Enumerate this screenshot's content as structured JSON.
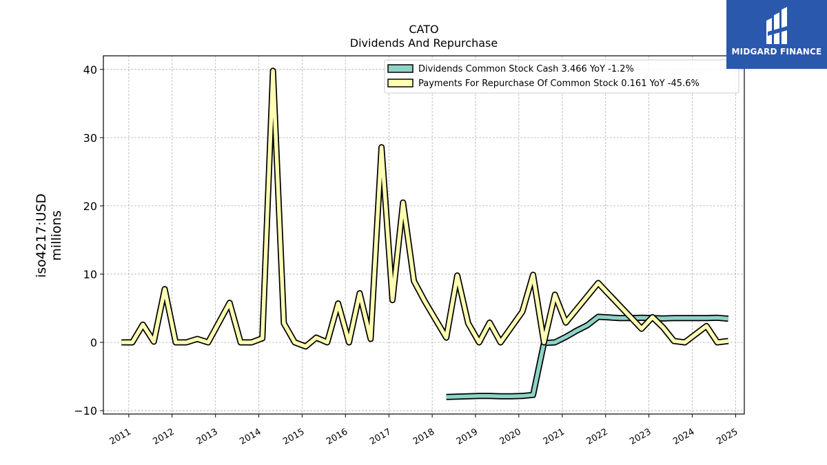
{
  "logo": {
    "text": "MIDGARD FINANCE",
    "icon": "midgard-finance-logo",
    "color": "#2a58ad"
  },
  "chart_data": {
    "type": "line",
    "title": "CATO",
    "subtitle": "Dividends And Repurchase",
    "ylabel": [
      "iso4217:USD",
      "millions"
    ],
    "xlabel": "",
    "ylim": [
      -10.5,
      42
    ],
    "xlim": [
      "2010-06-01",
      "2025-03-15"
    ],
    "yticks": [
      -10,
      0,
      10,
      20,
      30,
      40
    ],
    "ytick_labels": [
      "−10",
      "0",
      "10",
      "20",
      "30",
      "40"
    ],
    "xticks": [
      "2011-01-01",
      "2012-01-01",
      "2013-01-01",
      "2014-01-01",
      "2015-01-01",
      "2016-01-01",
      "2017-01-01",
      "2018-01-01",
      "2019-01-01",
      "2020-01-01",
      "2021-01-01",
      "2022-01-01",
      "2023-01-01",
      "2024-01-01",
      "2025-01-01"
    ],
    "xtick_labels": [
      "2011",
      "2012",
      "2013",
      "2014",
      "2015",
      "2016",
      "2017",
      "2018",
      "2019",
      "2020",
      "2021",
      "2022",
      "2023",
      "2024",
      "2025"
    ],
    "grid": true,
    "legend_position": "top-right",
    "series": [
      {
        "name": "Dividends Common Stock Cash  3.466 YoY -1.2%",
        "color": "#8dd3c7",
        "points": [
          [
            "2018-04-30",
            -8.0
          ],
          [
            "2018-07-31",
            -7.95
          ],
          [
            "2018-10-31",
            -7.9
          ],
          [
            "2019-01-31",
            -7.85
          ],
          [
            "2019-04-30",
            -7.85
          ],
          [
            "2019-07-31",
            -7.9
          ],
          [
            "2019-10-31",
            -7.9
          ],
          [
            "2020-01-31",
            -7.85
          ],
          [
            "2020-04-30",
            -7.7
          ],
          [
            "2020-07-31",
            -0.1
          ],
          [
            "2020-10-31",
            0.0
          ],
          [
            "2021-01-31",
            0.8
          ],
          [
            "2021-04-30",
            1.7
          ],
          [
            "2021-07-31",
            2.5
          ],
          [
            "2021-10-31",
            3.75
          ],
          [
            "2022-01-31",
            3.65
          ],
          [
            "2022-04-30",
            3.55
          ],
          [
            "2022-07-31",
            3.55
          ],
          [
            "2022-10-31",
            3.6
          ],
          [
            "2023-01-31",
            3.55
          ],
          [
            "2023-04-30",
            3.5
          ],
          [
            "2023-07-31",
            3.55
          ],
          [
            "2023-10-31",
            3.55
          ],
          [
            "2024-01-31",
            3.55
          ],
          [
            "2024-04-30",
            3.55
          ],
          [
            "2024-07-31",
            3.6
          ],
          [
            "2024-10-31",
            3.47
          ]
        ]
      },
      {
        "name": "Payments For Repurchase Of Common Stock  0.161 YoY -45.6%",
        "color": "#ffffb3",
        "points": [
          [
            "2010-10-31",
            0.0
          ],
          [
            "2011-01-31",
            0.0
          ],
          [
            "2011-04-30",
            2.6
          ],
          [
            "2011-07-31",
            0.1
          ],
          [
            "2011-10-31",
            7.8
          ],
          [
            "2012-01-31",
            0.0
          ],
          [
            "2012-04-30",
            0.0
          ],
          [
            "2012-07-31",
            0.5
          ],
          [
            "2012-10-31",
            0.0
          ],
          [
            "2013-04-30",
            5.8
          ],
          [
            "2013-07-31",
            0.0
          ],
          [
            "2013-10-31",
            0.0
          ],
          [
            "2014-01-31",
            0.6
          ],
          [
            "2014-04-30",
            39.8
          ],
          [
            "2014-07-31",
            2.8
          ],
          [
            "2014-10-31",
            0.0
          ],
          [
            "2015-01-31",
            -0.6
          ],
          [
            "2015-04-30",
            0.7
          ],
          [
            "2015-07-31",
            0.0
          ],
          [
            "2015-10-31",
            5.7
          ],
          [
            "2016-01-31",
            0.0
          ],
          [
            "2016-04-30",
            7.2
          ],
          [
            "2016-07-31",
            0.5
          ],
          [
            "2016-10-31",
            28.6
          ],
          [
            "2017-01-31",
            6.2
          ],
          [
            "2017-04-30",
            20.5
          ],
          [
            "2017-07-31",
            9.0
          ],
          [
            "2017-10-31",
            6.0
          ],
          [
            "2018-04-30",
            0.7
          ],
          [
            "2018-07-31",
            9.8
          ],
          [
            "2018-10-31",
            2.8
          ],
          [
            "2019-01-31",
            0.0
          ],
          [
            "2019-04-30",
            2.9
          ],
          [
            "2019-07-31",
            0.0
          ],
          [
            "2020-01-31",
            4.5
          ],
          [
            "2020-04-30",
            9.9
          ],
          [
            "2020-07-31",
            0.0
          ],
          [
            "2020-10-31",
            7.0
          ],
          [
            "2021-01-31",
            2.9
          ],
          [
            "2021-10-31",
            8.7
          ],
          [
            "2022-10-31",
            2.0
          ],
          [
            "2023-01-31",
            3.7
          ],
          [
            "2023-04-30",
            2.2
          ],
          [
            "2023-07-31",
            0.2
          ],
          [
            "2023-10-31",
            0.0
          ],
          [
            "2024-04-30",
            2.4
          ],
          [
            "2024-07-31",
            0.0
          ],
          [
            "2024-10-31",
            0.2
          ]
        ]
      }
    ]
  }
}
